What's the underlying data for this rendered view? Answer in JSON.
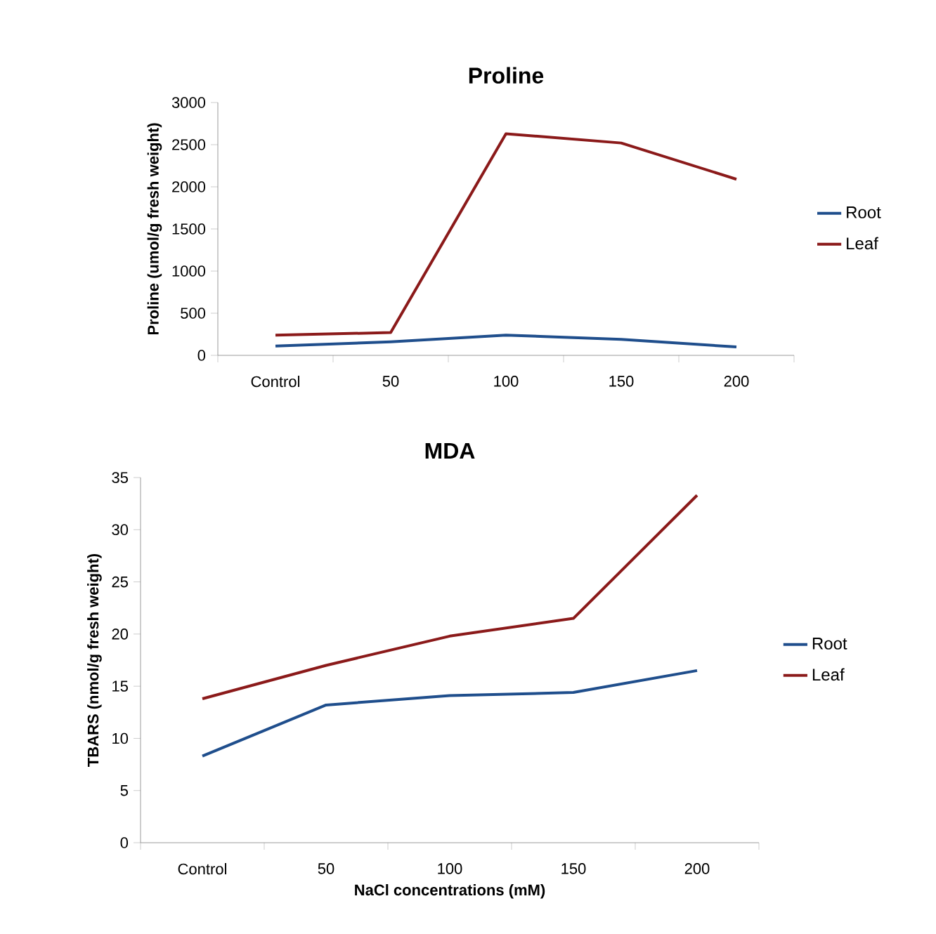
{
  "chart_data": [
    {
      "type": "line",
      "title": "Proline",
      "ylabel": "Proline (umol/g fresh weight)",
      "categories": [
        "Control",
        "50",
        "100",
        "150",
        "200"
      ],
      "series": [
        {
          "name": "Root",
          "color": "#1f4e8c",
          "values": [
            110,
            160,
            240,
            190,
            100
          ]
        },
        {
          "name": "Leaf",
          "color": "#8b1a1a",
          "values": [
            240,
            270,
            2630,
            2520,
            2090
          ]
        }
      ],
      "ylim": [
        0,
        3000
      ],
      "yticks": [
        0,
        500,
        1000,
        1500,
        2000,
        2500,
        3000
      ],
      "legend": "right"
    },
    {
      "type": "line",
      "title": "MDA",
      "ylabel": "TBARS (nmol/g fresh weight)",
      "xlabel": "NaCl concentrations (mM)",
      "categories": [
        "Control",
        "50",
        "100",
        "150",
        "200"
      ],
      "series": [
        {
          "name": "Root",
          "color": "#1f4e8c",
          "values": [
            8.3,
            13.2,
            14.1,
            14.4,
            16.5
          ]
        },
        {
          "name": "Leaf",
          "color": "#8b1a1a",
          "values": [
            13.8,
            17.0,
            19.8,
            21.5,
            33.3
          ]
        }
      ],
      "ylim": [
        0,
        35
      ],
      "yticks": [
        0,
        5,
        10,
        15,
        20,
        25,
        30,
        35
      ],
      "legend": "right"
    }
  ]
}
